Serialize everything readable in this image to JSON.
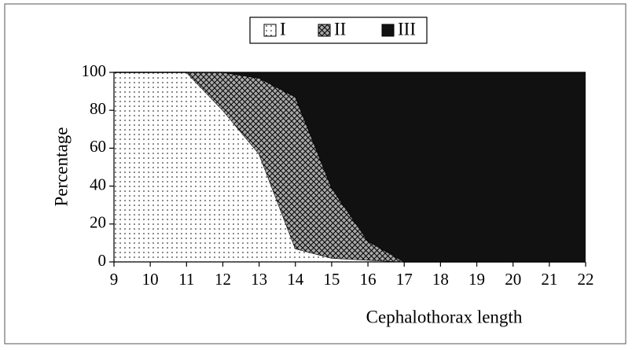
{
  "chart_data": {
    "type": "stacked_area",
    "x": [
      9,
      10,
      11,
      12,
      13,
      14,
      15,
      16,
      17,
      18,
      19,
      20,
      21,
      22
    ],
    "series": [
      {
        "name": "I",
        "color": "#ffffff",
        "pattern": "dots",
        "values": [
          100,
          100,
          100,
          80,
          57,
          7,
          2,
          1,
          0,
          0,
          0,
          0,
          0,
          0
        ]
      },
      {
        "name": "II",
        "color": "#a8a8a8",
        "pattern": "crosshatch",
        "values": [
          0,
          0,
          0,
          20,
          40,
          80,
          37,
          10,
          0,
          0,
          0,
          0,
          0,
          0
        ]
      },
      {
        "name": "III",
        "color": "#111111",
        "pattern": "solid",
        "values": [
          0,
          0,
          0,
          0,
          3,
          13,
          61,
          89,
          100,
          100,
          100,
          100,
          100,
          100
        ]
      }
    ],
    "xlabel": "Cephalothorax length",
    "ylabel": "Percentage",
    "xlim": [
      9,
      22
    ],
    "xticks": [
      9,
      10,
      11,
      12,
      13,
      14,
      15,
      16,
      17,
      18,
      19,
      20,
      21,
      22
    ],
    "ylim": [
      0,
      100
    ],
    "yticks": [
      0,
      20,
      40,
      60,
      80,
      100
    ],
    "legend": "top",
    "grid": false
  }
}
